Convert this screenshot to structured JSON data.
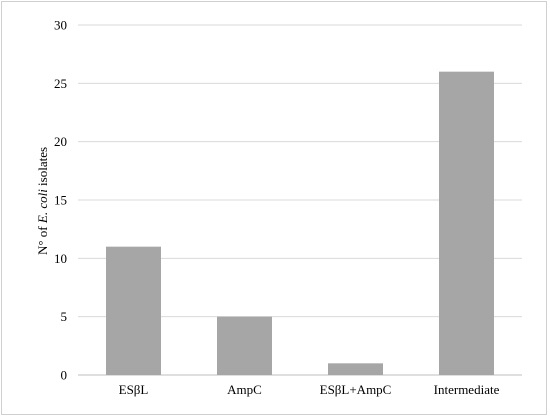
{
  "chart_data": {
    "type": "bar",
    "categories": [
      "ESβL",
      "AmpC",
      "ESβL+AmpC",
      "Intermediate"
    ],
    "values": [
      11,
      5,
      1,
      26
    ],
    "ylabel_parts": {
      "before": "N° of ",
      "italic": "E. coli",
      "after": " isolates"
    },
    "ylim": [
      0,
      30
    ],
    "yticks": [
      "0",
      "5",
      "10",
      "15",
      "20",
      "25",
      "30"
    ],
    "grid": true,
    "bar_color": "#a6a6a6",
    "grid_color": "#d9d9d9"
  }
}
